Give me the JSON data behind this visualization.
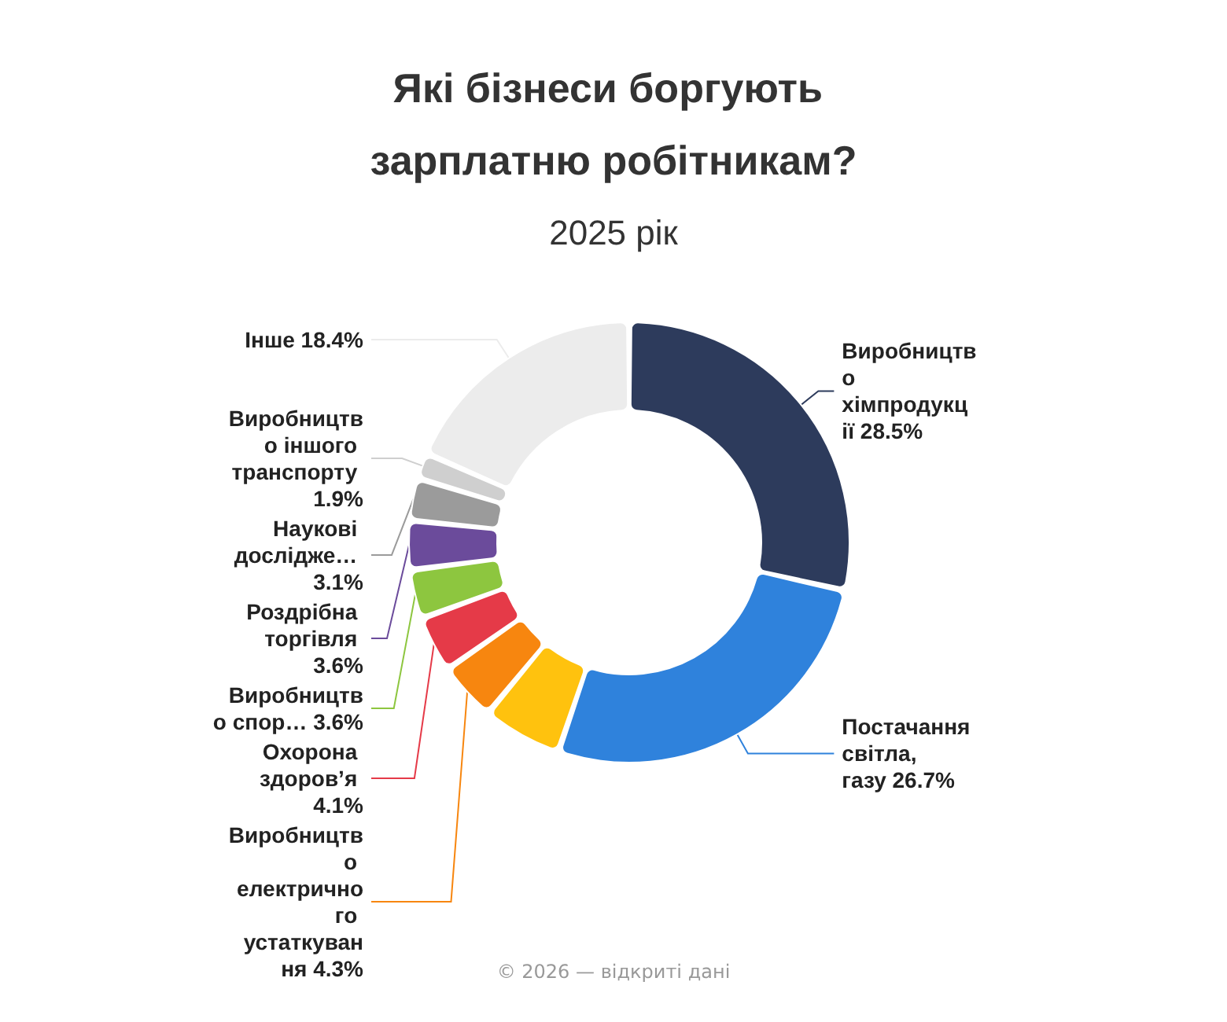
{
  "chart_data": {
    "type": "donut",
    "title": "Які бізнеси боргують зарплатню робітникам?",
    "subtitle": "2025 рік",
    "categories": [
      "Виробництво хімпродукції",
      "Постачання світла, газу",
      null,
      "Виробництво електричного устаткування",
      "Охорона здоров’я",
      "Виробництво спор…",
      "Роздрібна торгівля",
      "Наукові дослідже…",
      "Виробництво іншого транспорту",
      "Інше"
    ],
    "values": [
      28.5,
      26.7,
      5.8,
      4.3,
      4.1,
      3.6,
      3.6,
      3.1,
      1.9,
      18.4
    ],
    "colors": [
      "#2d3b5c",
      "#2f82dc",
      "#ffc20e",
      "#f7860f",
      "#e53a48",
      "#8dc63f",
      "#6b4b9b",
      "#9b9b9b",
      "#cfcfcf",
      "#ececec"
    ],
    "value_labels": [
      "28.5%",
      "26.7%",
      null,
      "4.3%",
      "4.1%",
      "3.6%",
      "3.6%",
      "3.1%",
      "1.9%",
      "18.4%"
    ],
    "legend": false,
    "annotations": [
      "© 2026 — відкриті дані"
    ]
  }
}
